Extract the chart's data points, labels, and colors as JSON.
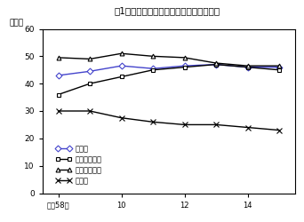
{
  "title": "図1１　高等学校卒業者の進学率・就職率",
  "ylabel": "（％）",
  "ylim": [
    0,
    60
  ],
  "yticks": [
    0,
    10,
    20,
    30,
    40,
    50,
    60
  ],
  "x_values": [
    8,
    9,
    10,
    11,
    12,
    13,
    14,
    15
  ],
  "x_ticks": [
    8,
    10,
    12,
    14
  ],
  "x_tick_labels": [
    "平成58年",
    "10",
    "12",
    "14"
  ],
  "xlim": [
    7.5,
    15.5
  ],
  "series": [
    {
      "label": "進学率",
      "values": [
        43.0,
        44.5,
        46.5,
        45.5,
        46.5,
        47.0,
        46.0,
        46.0
      ],
      "color": "#4444cc",
      "marker": "D",
      "markersize": 3.5,
      "linewidth": 1.0,
      "markerfacecolor": "white",
      "markeredgecolor": "#4444cc"
    },
    {
      "label": "進学率（男）",
      "values": [
        36.0,
        40.0,
        42.5,
        45.0,
        46.0,
        47.0,
        46.0,
        45.0
      ],
      "color": "#000000",
      "marker": "s",
      "markersize": 3.5,
      "linewidth": 1.0,
      "markerfacecolor": "white",
      "markeredgecolor": "#000000"
    },
    {
      "label": "進学率（女）",
      "values": [
        49.5,
        49.0,
        51.0,
        50.0,
        49.5,
        47.5,
        46.5,
        46.5
      ],
      "color": "#000000",
      "marker": "^",
      "markersize": 3.5,
      "linewidth": 1.0,
      "markerfacecolor": "white",
      "markeredgecolor": "#000000"
    },
    {
      "label": "就職率",
      "values": [
        30.0,
        30.0,
        27.5,
        26.0,
        25.0,
        25.0,
        24.0,
        23.0
      ],
      "color": "#000000",
      "marker": "x",
      "markersize": 4.5,
      "linewidth": 1.0,
      "markerfacecolor": "#000000",
      "markeredgecolor": "#000000"
    }
  ],
  "background_color": "#ffffff"
}
